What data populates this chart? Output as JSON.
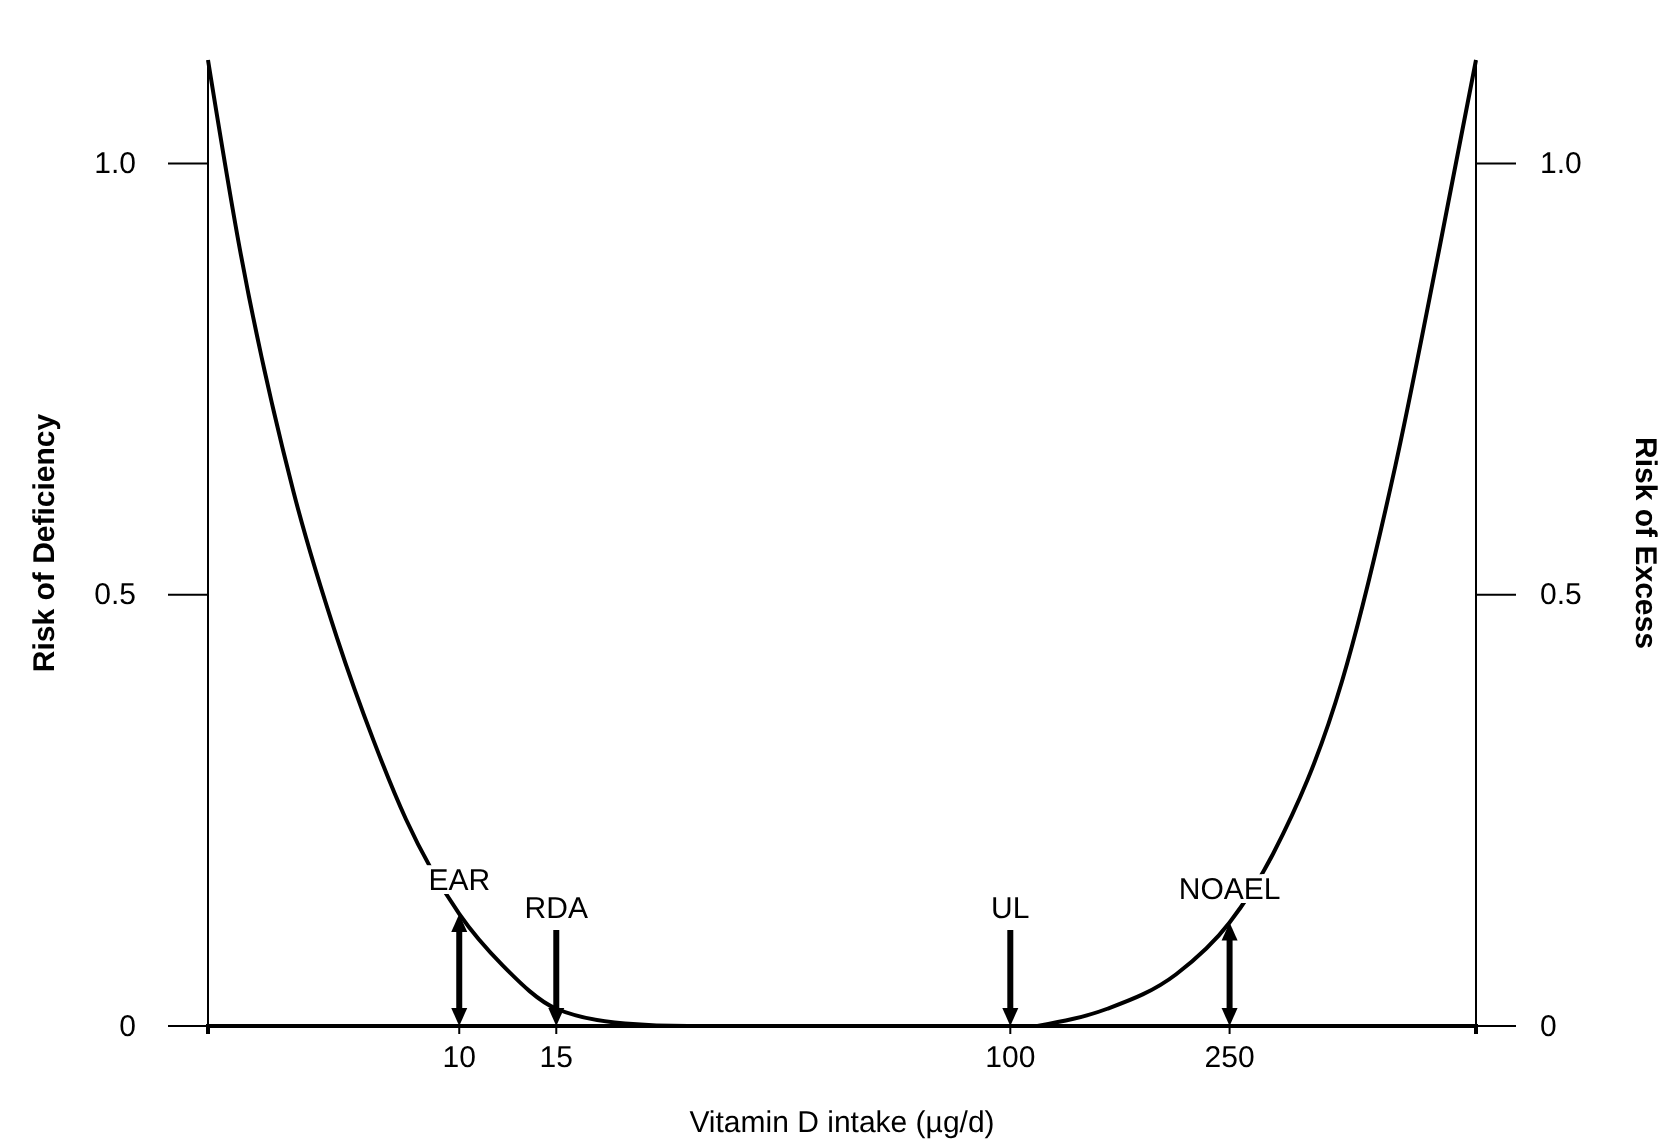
{
  "chart_data": {
    "type": "line",
    "xlabel": "Vitamin D intake (µg/d)",
    "ylabel": "Risk of Deficiency",
    "y2label": "Risk of Excess",
    "log": "x",
    "xlim": [
      3.5,
      700
    ],
    "xticks": [
      10,
      15,
      100,
      250
    ],
    "ylim": [
      0,
      1.12
    ],
    "yticks": [
      0,
      0.5,
      {
        "value": 1,
        "label": "1.0"
      }
    ],
    "y2lim": [
      0,
      1.12
    ],
    "y2ticks": [
      0,
      0.5,
      {
        "value": 1,
        "label": "1.0"
      }
    ],
    "grid": false,
    "marker": "none",
    "line_style": "solid",
    "series": [
      {
        "color": "#000000",
        "x": [
          3.5,
          4,
          5,
          6,
          7,
          8,
          10,
          12,
          15,
          20,
          26,
          100
        ],
        "values": [
          1.12,
          0.9,
          0.62,
          0.45,
          0.33,
          0.24,
          0.13,
          0.07,
          0.02,
          0.003,
          0,
          0
        ]
      },
      {
        "color": "#000000",
        "x": [
          112,
          150,
          200,
          250,
          300,
          400,
          500,
          600,
          700
        ],
        "values": [
          0,
          0.02,
          0.06,
          0.12,
          0.2,
          0.4,
          0.65,
          0.9,
          1.12
        ]
      }
    ],
    "annotations": [
      {
        "text": "EAR",
        "x": 10,
        "y": 0.13
      },
      {
        "text": "RDA",
        "x": 15
      },
      {
        "text": "UL",
        "x": 100
      },
      {
        "text": "NOAEL",
        "x": 250,
        "y": 0.12
      }
    ]
  }
}
